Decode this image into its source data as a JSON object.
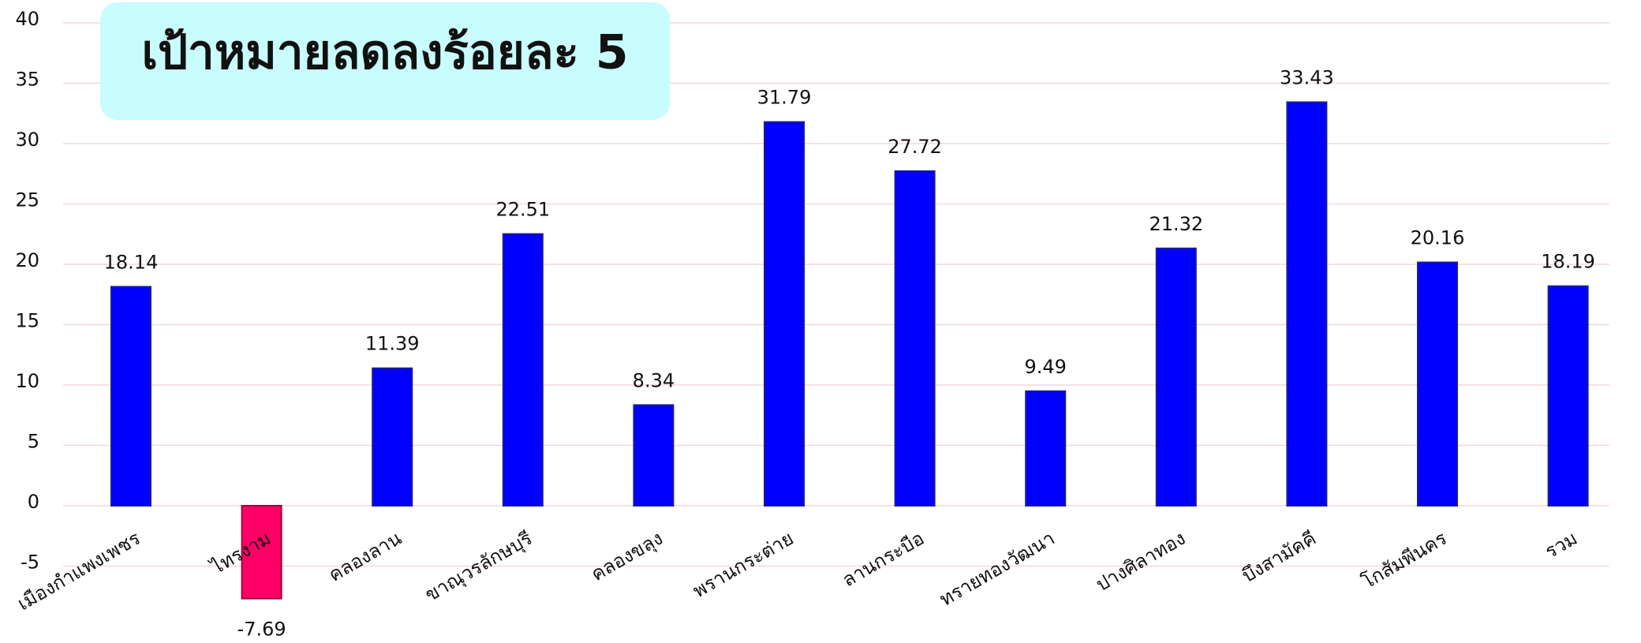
{
  "chart_data": {
    "type": "bar",
    "title": "เป้าหมายลดลงร้อยละ 5",
    "categories": [
      "เมืองกำแพงเพชร",
      "ไทรงาม",
      "คลองลาน",
      "ขาณุวรลักษบุรี",
      "คลองขลุง",
      "พรานกระต่าย",
      "ลานกระบือ",
      "ทรายทองวัฒนา",
      "ปางศิลาทอง",
      "บึงสามัคคี",
      "โกสัมพีนคร",
      "รวม"
    ],
    "values": [
      18.14,
      -7.69,
      11.39,
      22.51,
      8.34,
      31.79,
      27.72,
      9.49,
      21.32,
      33.43,
      20.16,
      18.19
    ],
    "colors": [
      "#0000ff",
      "#ff0066",
      "#0000ff",
      "#0000ff",
      "#0000ff",
      "#0000ff",
      "#0000ff",
      "#0000ff",
      "#0000ff",
      "#0000ff",
      "#0000ff",
      "#0000ff"
    ],
    "ylim": [
      -10,
      40
    ],
    "yticks": [
      -5,
      0,
      5,
      10,
      15,
      20,
      25,
      30,
      35,
      40
    ],
    "grid": true
  }
}
